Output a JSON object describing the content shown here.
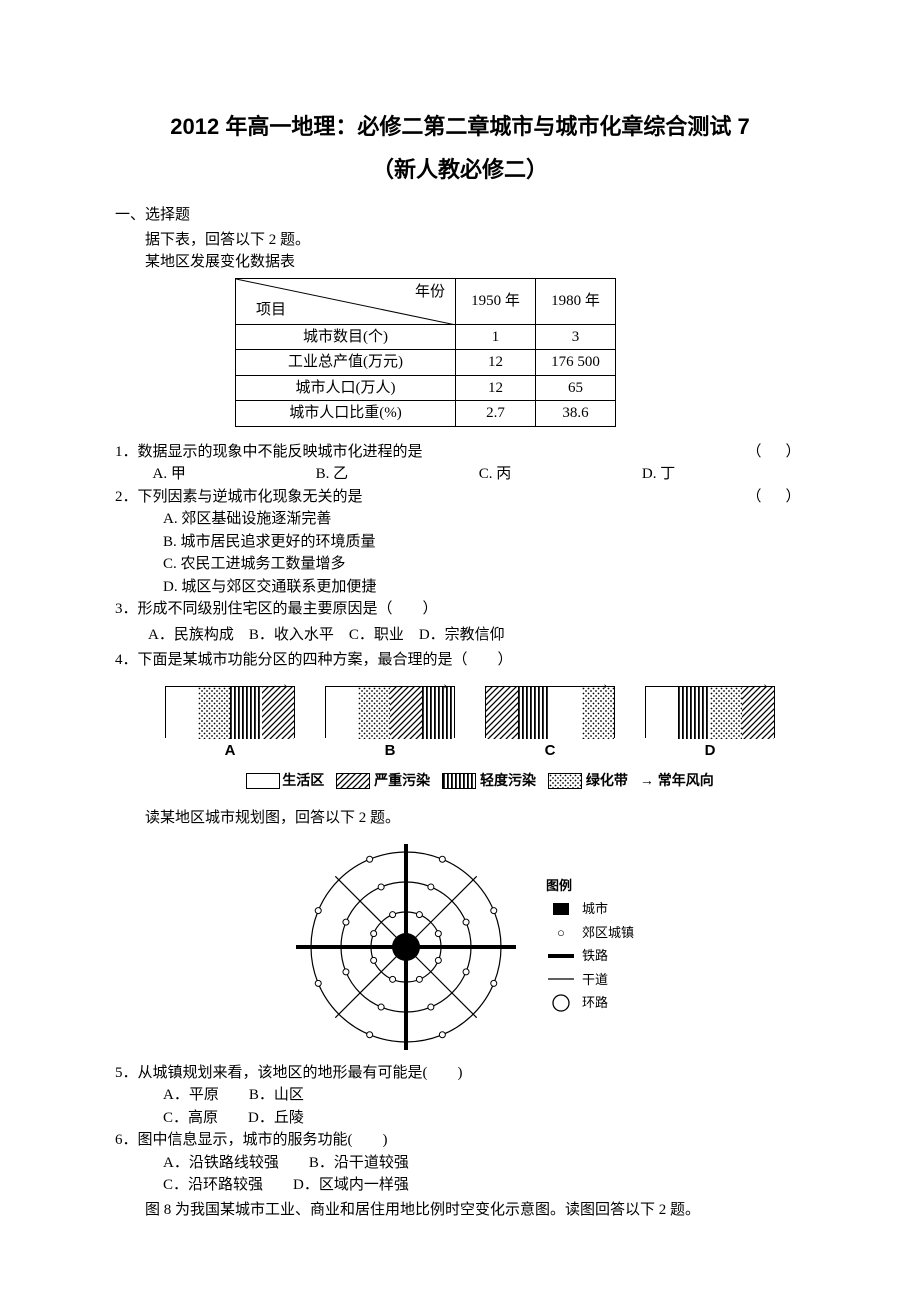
{
  "title_main": "2012 年高一地理：必修二第二章城市与城市化章综合测试 7",
  "title_sub": "（新人教必修二）",
  "section1": "一、选择题",
  "intro1": "据下表，回答以下 2 题。",
  "intro2": "某地区发展变化数据表",
  "table": {
    "diag_top": "年份",
    "diag_bot": "项目",
    "col1": "1950 年",
    "col2": "1980 年",
    "rows": [
      {
        "label": "城市数目(个)",
        "v1": "1",
        "v2": "3"
      },
      {
        "label": "工业总产值(万元)",
        "v1": "12",
        "v2": "176 500"
      },
      {
        "label": "城市人口(万人)",
        "v1": "12",
        "v2": "65"
      },
      {
        "label": "城市人口比重(%)",
        "v1": "2.7",
        "v2": "38.6"
      }
    ]
  },
  "q1": {
    "stem": "1．数据显示的现象中不能反映城市化进程的是",
    "paren": "（　）",
    "opts": {
      "a": "A. 甲",
      "b": "B. 乙",
      "c": "C. 丙",
      "d": "D. 丁"
    }
  },
  "q2": {
    "stem": "2．下列因素与逆城市化现象无关的是",
    "paren": "（　）",
    "a": "A. 郊区基础设施逐渐完善",
    "b": "B. 城市居民追求更好的环境质量",
    "c": "C. 农民工进城务工数量增多",
    "d": "D. 城区与郊区交通联系更加便捷"
  },
  "q3": {
    "stem": "3．形成不同级别住宅区的最主要原因是（　　）",
    "opts": "A．民族构成　B．收入水平　C．职业　D．宗教信仰"
  },
  "q4": {
    "stem": "4．下面是某城市功能分区的四种方案，最合理的是（　　）",
    "labels": {
      "a": "A",
      "b": "B",
      "c": "C",
      "d": "D"
    },
    "patterns": {
      "blank": {
        "color": "#ffffff"
      },
      "heavy": {
        "label": "严重污染",
        "svg_id": "pat-heavy",
        "bg": "#ffffff",
        "stroke": "#000000"
      },
      "light": {
        "label": "轻度污染",
        "svg_id": "pat-light",
        "stroke": "#000000"
      },
      "green": {
        "label": "绿化带",
        "svg_id": "pat-green",
        "stroke": "#000000"
      }
    },
    "legend": {
      "life": "生活区",
      "heavy": "严重污染",
      "light": "轻度污染",
      "green": "绿化带",
      "wind": "常年风向"
    },
    "blocks": {
      "A": [
        "blank",
        "green",
        "light",
        "heavy"
      ],
      "B": [
        "blank",
        "green",
        "heavy",
        "light"
      ],
      "C": [
        "heavy",
        "light",
        "blank",
        "green"
      ],
      "D": [
        "blank",
        "light",
        "green",
        "heavy"
      ]
    },
    "seg_width": 32
  },
  "intro3": "读某地区城市规划图，回答以下 2 题。",
  "radial": {
    "legend_title": "图例",
    "items": {
      "city": "城市",
      "town": "郊区城镇",
      "rail": "铁路",
      "road": "干道",
      "ring": "环路"
    },
    "colors": {
      "stroke": "#000000",
      "fill_city": "#000000",
      "bg": "#ffffff"
    },
    "rings": 3,
    "spokes": 8,
    "towns_per_ring": [
      8,
      8,
      8
    ]
  },
  "q5": {
    "stem": "5．从城镇规划来看，该地区的地形最有可能是(　　)",
    "a": "A．平原　　B．山区",
    "b": "C．高原　　D．丘陵"
  },
  "q6": {
    "stem": "6．图中信息显示，城市的服务功能(　　)",
    "a": "A．沿铁路线较强　　B．沿干道较强",
    "b": "C．沿环路较强　　D．区域内一样强"
  },
  "footer": "图 8 为我国某城市工业、商业和居住用地比例时空变化示意图。读图回答以下 2 题。"
}
